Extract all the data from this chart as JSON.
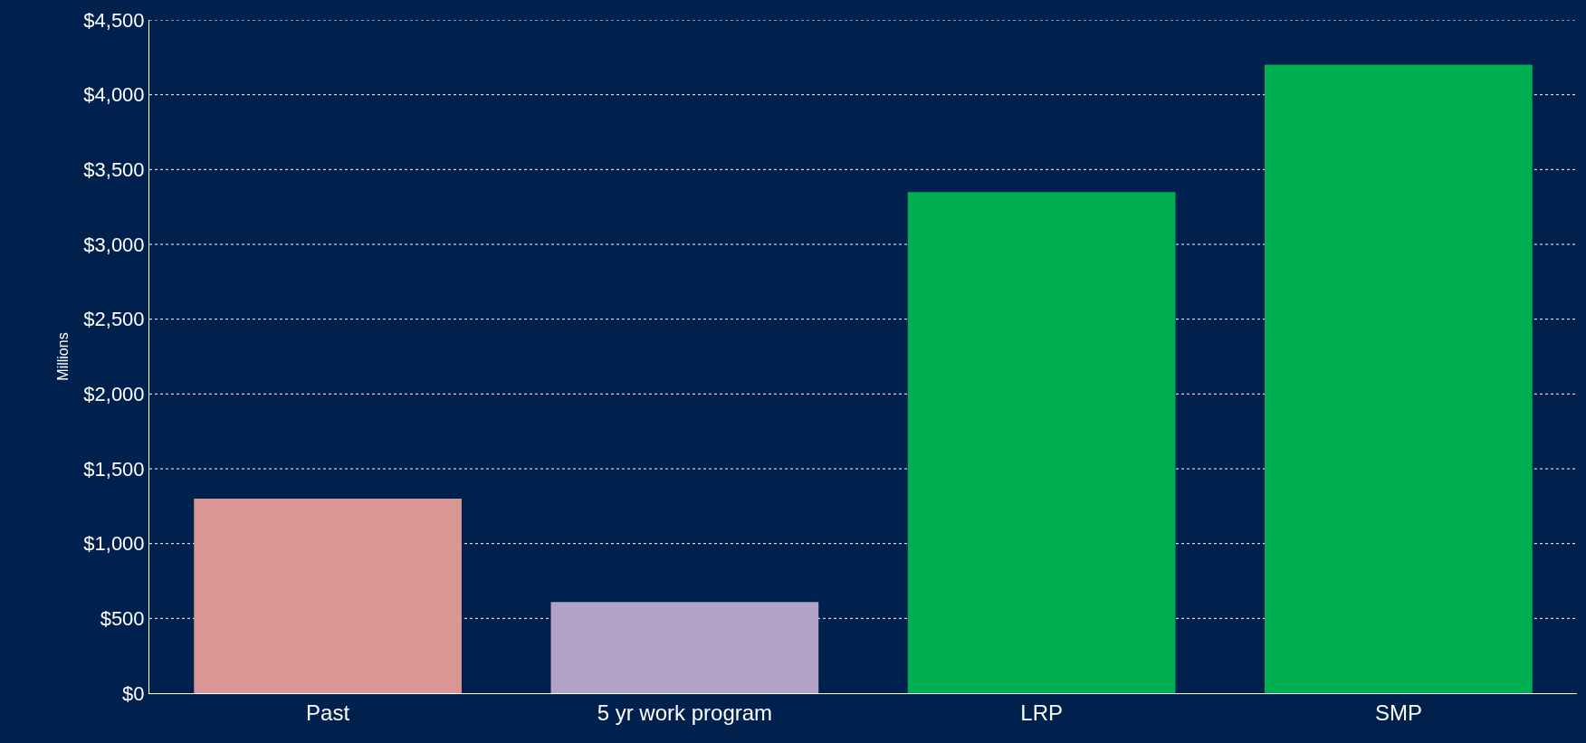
{
  "chart_data": {
    "type": "bar",
    "ylabel": "Millions",
    "categories": [
      "Past",
      "5 yr work program",
      "LRP",
      "SMP"
    ],
    "values": [
      1300,
      610,
      3350,
      4200
    ],
    "colors": [
      "#d99694",
      "#b3a2c7",
      "#00b050",
      "#00b050"
    ],
    "ylim": [
      0,
      4500
    ],
    "yticks": [
      {
        "value": 0,
        "label": "$0"
      },
      {
        "value": 500,
        "label": "$500"
      },
      {
        "value": 1000,
        "label": "$1,000"
      },
      {
        "value": 1500,
        "label": "$1,500"
      },
      {
        "value": 2000,
        "label": "$2,000"
      },
      {
        "value": 2500,
        "label": "$2,500"
      },
      {
        "value": 3000,
        "label": "$3,000"
      },
      {
        "value": 3500,
        "label": "$3,500"
      },
      {
        "value": 4000,
        "label": "$4,000"
      },
      {
        "value": 4500,
        "label": "$4,500"
      }
    ],
    "grid": "y"
  }
}
